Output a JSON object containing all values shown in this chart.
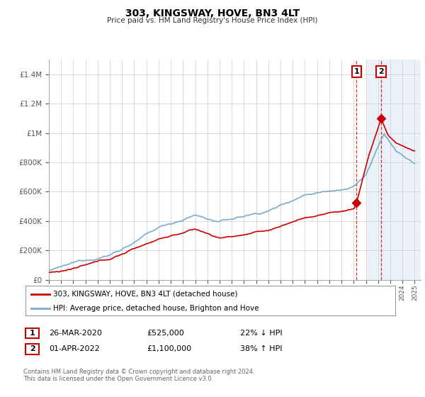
{
  "title": "303, KINGSWAY, HOVE, BN3 4LT",
  "subtitle": "Price paid vs. HM Land Registry's House Price Index (HPI)",
  "ylabel_ticks": [
    "£0",
    "£200K",
    "£400K",
    "£600K",
    "£800K",
    "£1M",
    "£1.2M",
    "£1.4M"
  ],
  "ytick_values": [
    0,
    200000,
    400000,
    600000,
    800000,
    1000000,
    1200000,
    1400000
  ],
  "ylim": [
    0,
    1500000
  ],
  "xlim_start": 1995.0,
  "xlim_end": 2025.5,
  "hpi_color": "#7aaad0",
  "price_color": "#cc0000",
  "point1_x": 2020.23,
  "point1_y": 525000,
  "point2_x": 2022.25,
  "point2_y": 1100000,
  "legend_label1": "303, KINGSWAY, HOVE, BN3 4LT (detached house)",
  "legend_label2": "HPI: Average price, detached house, Brighton and Hove",
  "table_row1": [
    "1",
    "26-MAR-2020",
    "£525,000",
    "22% ↓ HPI"
  ],
  "table_row2": [
    "2",
    "01-APR-2022",
    "£1,100,000",
    "38% ↑ HPI"
  ],
  "footnote": "Contains HM Land Registry data © Crown copyright and database right 2024.\nThis data is licensed under the Open Government Licence v3.0.",
  "bg_color": "#ffffff",
  "grid_color": "#cccccc",
  "shaded_start": 2021.0,
  "shaded_end": 2025.5
}
